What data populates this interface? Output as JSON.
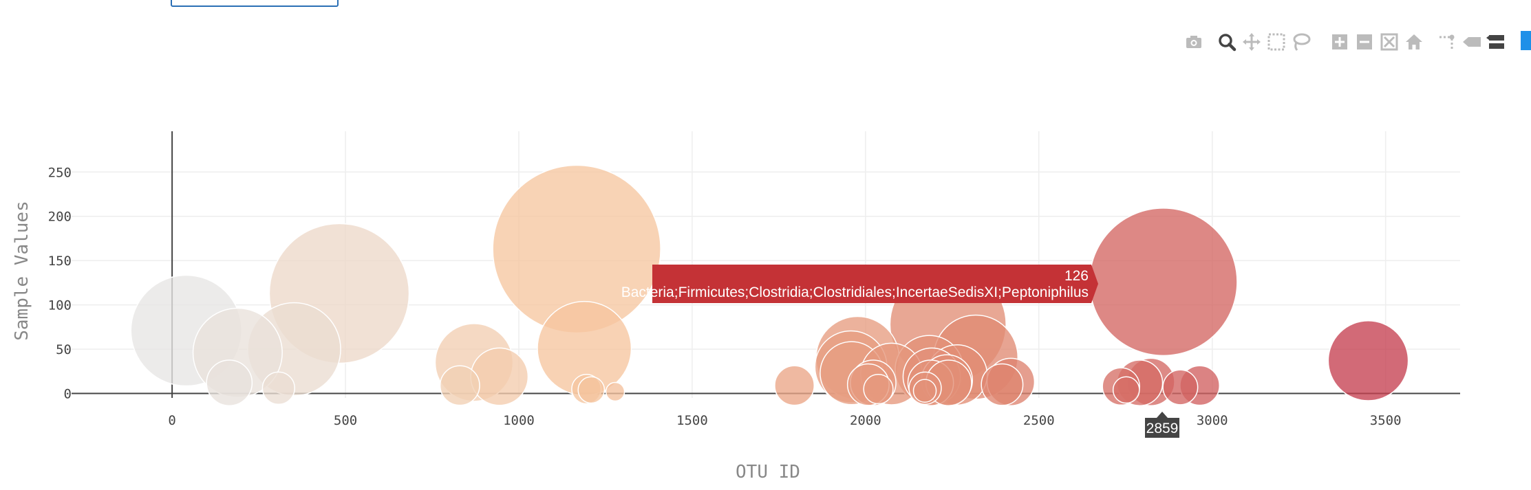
{
  "chart_data": {
    "type": "scatter",
    "mode": "markers (bubble)",
    "xlabel": "OTU ID",
    "ylabel": "Sample Values",
    "xlim": [
      -290,
      3715
    ],
    "ylim": [
      -5,
      296
    ],
    "x_ticks": [
      0,
      500,
      1000,
      1500,
      2000,
      2500,
      3000,
      3500
    ],
    "y_ticks": [
      0,
      50,
      100,
      150,
      200,
      250
    ],
    "color_gradient": [
      "#e6e6e6",
      "#f6c6a0",
      "#e08972",
      "#c43d50"
    ],
    "grid": true,
    "points": [
      {
        "x": 41,
        "y": 71
      },
      {
        "x": 189,
        "y": 46
      },
      {
        "x": 165,
        "y": 12
      },
      {
        "x": 352,
        "y": 50
      },
      {
        "x": 482,
        "y": 113
      },
      {
        "x": 307,
        "y": 6
      },
      {
        "x": 1167,
        "y": 163
      },
      {
        "x": 1189,
        "y": 51
      },
      {
        "x": 871,
        "y": 35
      },
      {
        "x": 944,
        "y": 19
      },
      {
        "x": 830,
        "y": 9
      },
      {
        "x": 1195,
        "y": 5
      },
      {
        "x": 1209,
        "y": 4
      },
      {
        "x": 1278,
        "y": 2
      },
      {
        "x": 1795,
        "y": 9
      },
      {
        "x": 1977,
        "y": 40
      },
      {
        "x": 1958,
        "y": 30
      },
      {
        "x": 1960,
        "y": 23
      },
      {
        "x": 2075,
        "y": 22
      },
      {
        "x": 2022,
        "y": 12
      },
      {
        "x": 2008,
        "y": 10
      },
      {
        "x": 2037,
        "y": 5
      },
      {
        "x": 2184,
        "y": 27
      },
      {
        "x": 2191,
        "y": 19
      },
      {
        "x": 2188,
        "y": 12
      },
      {
        "x": 2172,
        "y": 6
      },
      {
        "x": 2171,
        "y": 3
      },
      {
        "x": 2264,
        "y": 21
      },
      {
        "x": 2235,
        "y": 15
      },
      {
        "x": 2240,
        "y": 12
      },
      {
        "x": 2238,
        "y": 78
      },
      {
        "x": 2318,
        "y": 41
      },
      {
        "x": 2419,
        "y": 13
      },
      {
        "x": 2394,
        "y": 10
      },
      {
        "x": 2859,
        "y": 126,
        "hovered": true
      },
      {
        "x": 2737,
        "y": 8
      },
      {
        "x": 2752,
        "y": 4
      },
      {
        "x": 2791,
        "y": 12
      },
      {
        "x": 2823,
        "y": 13
      },
      {
        "x": 2908,
        "y": 7
      },
      {
        "x": 2964,
        "y": 9
      },
      {
        "x": 3450,
        "y": 37
      }
    ],
    "hover": {
      "x_label": "2859",
      "value": "126",
      "text": "Bacteria;Firmicutes;Clostridia;Clostridiales;IncertaeSedisXI;Peptoniphilus"
    }
  },
  "modebar": {
    "buttons": [
      "camera-icon",
      "zoom-icon",
      "pan-icon",
      "box-select-icon",
      "lasso-icon",
      "zoom-in-icon",
      "zoom-out-icon",
      "autoscale-icon",
      "reset-axes-icon",
      "spike-lines-icon",
      "hover-closest-icon",
      "hover-compare-icon"
    ]
  }
}
